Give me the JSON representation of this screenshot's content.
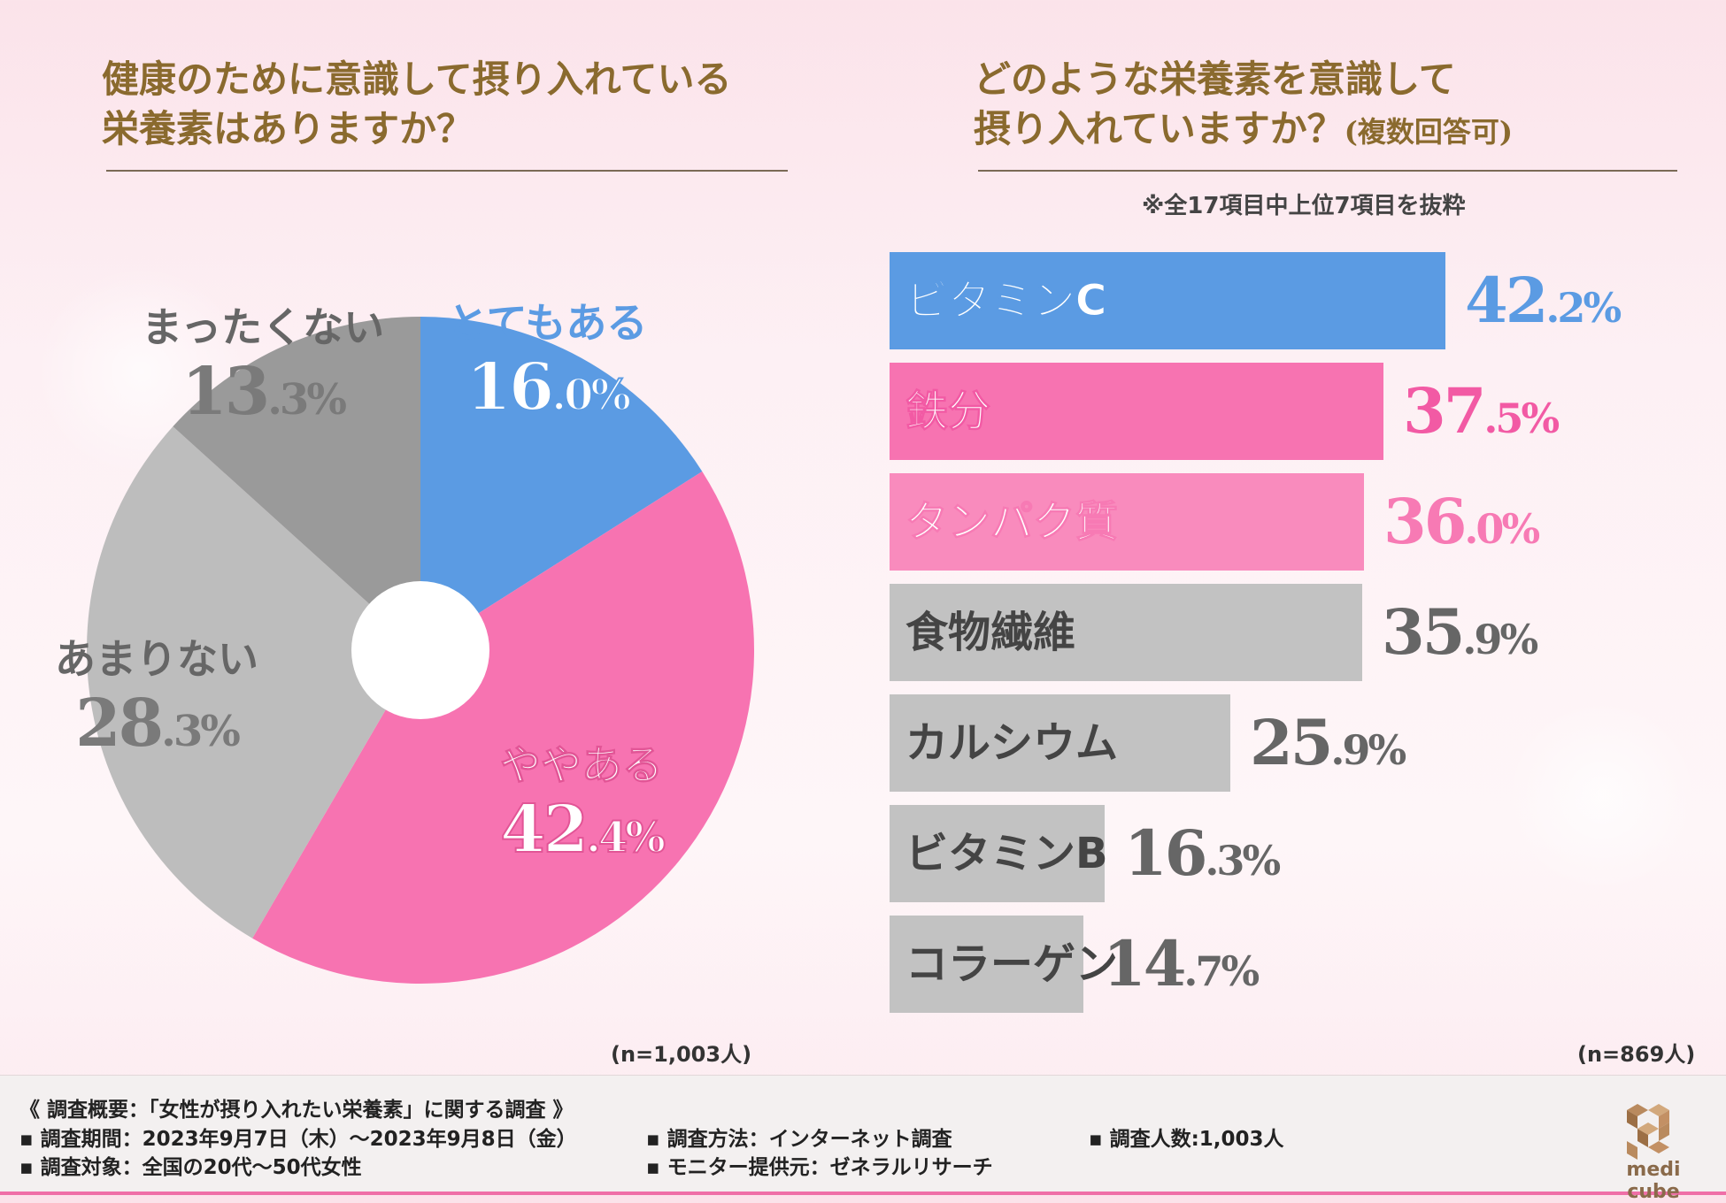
{
  "left": {
    "title_line1": "健康のために意識して摂り入れている",
    "title_line2": "栄養素はありますか？",
    "n_label": "(n=1,003人)"
  },
  "right": {
    "title_line1": "どのような栄養素を意識して",
    "title_line2": "摂り入れていますか？",
    "title_suffix": "(複数回答可)",
    "note": "※全17項目中上位7項目を抜粋",
    "n_label": "(n=869人)"
  },
  "chart_data": [
    {
      "type": "pie",
      "style": "donut",
      "slices": [
        {
          "label": "とてもある",
          "value": 16.0,
          "display_int": "16",
          "display_dec": ".0%",
          "color": "#5b9be3"
        },
        {
          "label": "ややある",
          "value": 42.4,
          "display_int": "42",
          "display_dec": ".4%",
          "color": "#f773b1"
        },
        {
          "label": "あまりない",
          "value": 28.3,
          "display_int": "28",
          "display_dec": ".3%",
          "color": "#bdbdbd"
        },
        {
          "label": "まったくない",
          "value": 13.3,
          "display_int": "13",
          "display_dec": ".3%",
          "color": "#9a9a9a"
        }
      ],
      "unit": "%"
    },
    {
      "type": "bar",
      "orientation": "horizontal",
      "categories": [
        "ビタミンC",
        "鉄分",
        "タンパク質",
        "食物繊維",
        "カルシウム",
        "ビタミンB",
        "コラーゲン"
      ],
      "values": [
        42.2,
        37.5,
        36.0,
        35.9,
        25.9,
        16.3,
        14.7
      ],
      "display_int": [
        "42",
        "37",
        "36",
        "35",
        "25",
        "16",
        "14"
      ],
      "display_dec": [
        ".2%",
        ".5%",
        ".0%",
        ".9%",
        ".9%",
        ".3%",
        ".7%"
      ],
      "bar_colors": [
        "#5b9be3",
        "#f773b1",
        "#f98bbd",
        "#c2c2c2",
        "#c2c2c2",
        "#c2c2c2",
        "#c2c2c2"
      ],
      "value_colors": [
        "#5b9be3",
        "#f25aa4",
        "#f77ab4",
        "#666666",
        "#666666",
        "#666666",
        "#666666"
      ],
      "unit": "%",
      "xlim": [
        0,
        42.2
      ]
    }
  ],
  "footer": {
    "summary": "《 調査概要：「女性が摂り入れたい栄養素」に関する調査 》",
    "period": "▪ 調査期間：2023年9月7日（木）～2023年9月8日（金）",
    "target": "▪ 調査対象：全国の20代～50代女性",
    "method": "▪ 調査方法：インターネット調査",
    "provider": "▪ モニター提供元：ゼネラルリサーチ",
    "count": "▪ 調査人数:1,003人",
    "brand": "medi cube"
  },
  "colors": {
    "title": "#8a6a2e",
    "blue": "#5b9be3",
    "pink": "#f773b1",
    "gray": "#c2c2c2"
  }
}
